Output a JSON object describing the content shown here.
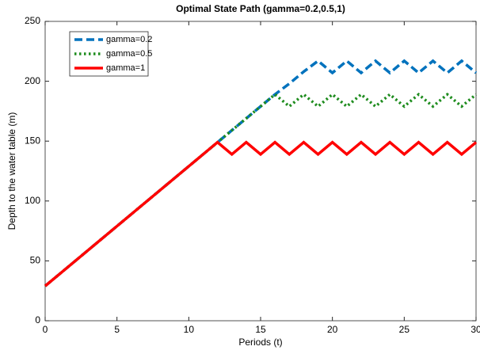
{
  "chart_data": {
    "type": "line",
    "title": "Optimal State Path (gamma=0.2,0.5,1)",
    "x_label": "Periods (t)",
    "y_label": "Depth to the water table (m)",
    "x": [
      0,
      1,
      2,
      3,
      4,
      5,
      6,
      7,
      8,
      9,
      10,
      11,
      12,
      13,
      14,
      15,
      16,
      17,
      18,
      19,
      20,
      21,
      22,
      23,
      24,
      25,
      26,
      27,
      28,
      29,
      30
    ],
    "series": [
      {
        "name": "gamma=0.2",
        "color": "#0072bd",
        "style": "dashed",
        "values": [
          29,
          39,
          49,
          59,
          69,
          79,
          89,
          99,
          109,
          119,
          129,
          139,
          149,
          159,
          169,
          179,
          189,
          198,
          208,
          217,
          207,
          217,
          207,
          217,
          207,
          217,
          207,
          217,
          207,
          217,
          207
        ]
      },
      {
        "name": "gamma=0.5",
        "color": "#1e8c1e",
        "style": "dotted",
        "values": [
          29,
          39,
          49,
          59,
          69,
          79,
          89,
          99,
          109,
          119,
          129,
          139,
          149,
          159,
          169,
          179,
          189,
          179,
          189,
          179,
          189,
          179,
          189,
          179,
          189,
          179,
          189,
          179,
          189,
          179,
          189
        ]
      },
      {
        "name": "gamma=1",
        "color": "#ff0000",
        "style": "solid",
        "values": [
          29,
          39,
          49,
          59,
          69,
          79,
          89,
          99,
          109,
          119,
          129,
          139,
          149,
          139,
          149,
          139,
          149,
          139,
          149,
          139,
          149,
          139,
          149,
          139,
          149,
          139,
          149,
          139,
          149,
          139,
          149
        ]
      }
    ],
    "xlim": [
      0,
      30
    ],
    "xticks": [
      0,
      5,
      10,
      15,
      20,
      25,
      30
    ],
    "ylim": [
      0,
      250
    ],
    "yticks": [
      0,
      50,
      100,
      150,
      200,
      250
    ],
    "grid": false,
    "legend": "upper left"
  }
}
